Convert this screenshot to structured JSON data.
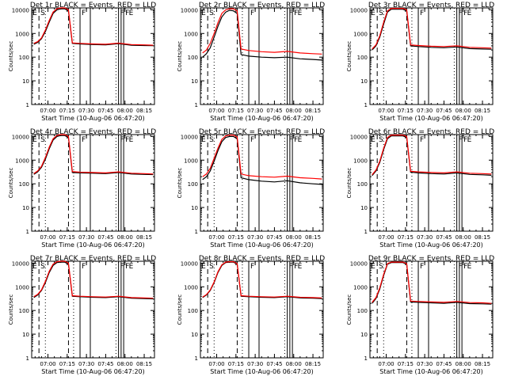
{
  "colors": {
    "events": "#000000",
    "lld": "#ff0000",
    "axes": "#000000"
  },
  "common": {
    "xlabel": "Start Time (10-Aug-06 06:47:20)",
    "ylabel": "Counts/sec",
    "x_tick_labels": [
      "07:00",
      "07:15",
      "07:30",
      "07:45",
      "08:00",
      "08:15"
    ],
    "y_tick_labels": [
      "1",
      "10",
      "100",
      "1000",
      "10000"
    ]
  },
  "chart_data": [
    {
      "type": "line",
      "title": "Det 1r BLACK = Events, RED = LLD",
      "xlabel": "Start Time (10-Aug-06 06:47:20)",
      "ylabel": "Counts/sec",
      "y_scale": "log",
      "ylim": [
        1,
        12000
      ],
      "x_start": "06:47:20",
      "x": [
        "06:49",
        "06:52",
        "06:55",
        "06:58",
        "07:01",
        "07:04",
        "07:07",
        "07:10",
        "07:13",
        "07:16",
        "07:19",
        "07:25",
        "07:35",
        "07:45",
        "07:55",
        "08:05",
        "08:15",
        "08:22"
      ],
      "series": [
        {
          "name": "BLACK = Events",
          "values": [
            350,
            420,
            600,
            1200,
            3000,
            7000,
            10000,
            11000,
            11000,
            9000,
            380,
            360,
            340,
            330,
            370,
            320,
            310,
            305
          ]
        },
        {
          "name": "RED = LLD",
          "values": [
            380,
            450,
            650,
            1400,
            3500,
            8000,
            11000,
            12000,
            12000,
            10000,
            400,
            380,
            360,
            350,
            390,
            340,
            330,
            320
          ]
        }
      ]
    },
    {
      "type": "line",
      "title": "Det 2r BLACK = Events, RED = LLD",
      "xlabel": "Start Time (10-Aug-06 06:47:20)",
      "ylabel": "Counts/sec",
      "y_scale": "log",
      "ylim": [
        1,
        12000
      ],
      "x_start": "06:47:20",
      "x": [
        "06:49",
        "06:52",
        "06:55",
        "06:58",
        "07:01",
        "07:04",
        "07:07",
        "07:10",
        "07:13",
        "07:16",
        "07:19",
        "07:25",
        "07:35",
        "07:45",
        "07:55",
        "08:05",
        "08:15",
        "08:22"
      ],
      "series": [
        {
          "name": "BLACK = Events",
          "values": [
            100,
            140,
            250,
            700,
            2000,
            5000,
            8000,
            9500,
            9000,
            7000,
            130,
            110,
            100,
            95,
            100,
            85,
            80,
            75
          ]
        },
        {
          "name": "RED = LLD",
          "values": [
            150,
            200,
            380,
            1000,
            2800,
            7000,
            10000,
            11000,
            11000,
            9000,
            220,
            190,
            170,
            160,
            175,
            150,
            140,
            135
          ]
        }
      ]
    },
    {
      "type": "line",
      "title": "Det 3r BLACK = Events, RED = LLD",
      "xlabel": "Start Time (10-Aug-06 06:47:20)",
      "ylabel": "Counts/sec",
      "y_scale": "log",
      "ylim": [
        1,
        12000
      ],
      "x_start": "06:47:20",
      "x": [
        "06:49",
        "06:52",
        "06:55",
        "06:58",
        "07:01",
        "07:04",
        "07:07",
        "07:10",
        "07:13",
        "07:16",
        "07:19",
        "07:25",
        "07:35",
        "07:45",
        "07:55",
        "08:05",
        "08:15",
        "08:22"
      ],
      "series": [
        {
          "name": "BLACK = Events",
          "values": [
            200,
            300,
            700,
            2500,
            8000,
            10500,
            10500,
            10500,
            10500,
            9000,
            300,
            280,
            260,
            250,
            270,
            230,
            220,
            215
          ]
        },
        {
          "name": "RED = LLD",
          "values": [
            220,
            330,
            800,
            3000,
            9000,
            11500,
            11500,
            11500,
            11500,
            10000,
            330,
            310,
            290,
            280,
            300,
            260,
            250,
            240
          ]
        }
      ]
    },
    {
      "type": "line",
      "title": "Det 4r BLACK = Events, RED = LLD",
      "xlabel": "Start Time (10-Aug-06 06:47:20)",
      "ylabel": "Counts/sec",
      "y_scale": "log",
      "ylim": [
        1,
        12000
      ],
      "x_start": "06:47:20",
      "x": [
        "06:49",
        "06:52",
        "06:55",
        "06:58",
        "07:01",
        "07:04",
        "07:07",
        "07:10",
        "07:13",
        "07:16",
        "07:19",
        "07:25",
        "07:35",
        "07:45",
        "07:55",
        "08:05",
        "08:15",
        "08:22"
      ],
      "series": [
        {
          "name": "BLACK = Events",
          "values": [
            250,
            320,
            500,
            1100,
            3000,
            7000,
            10000,
            11000,
            11000,
            9000,
            300,
            290,
            280,
            270,
            300,
            260,
            250,
            245
          ]
        },
        {
          "name": "RED = LLD",
          "values": [
            270,
            350,
            550,
            1300,
            3500,
            8000,
            11000,
            12000,
            12000,
            10000,
            330,
            310,
            300,
            290,
            320,
            280,
            270,
            260
          ]
        }
      ]
    },
    {
      "type": "line",
      "title": "Det 5r BLACK = Events, RED = LLD",
      "xlabel": "Start Time (10-Aug-06 06:47:20)",
      "ylabel": "Counts/sec",
      "y_scale": "log",
      "ylim": [
        1,
        12000
      ],
      "x_start": "06:47:20",
      "x": [
        "06:49",
        "06:52",
        "06:55",
        "06:58",
        "07:01",
        "07:04",
        "07:07",
        "07:10",
        "07:13",
        "07:16",
        "07:19",
        "07:25",
        "07:35",
        "07:45",
        "07:55",
        "08:05",
        "08:15",
        "08:22"
      ],
      "series": [
        {
          "name": "BLACK = Events",
          "values": [
            150,
            200,
            350,
            900,
            2500,
            6000,
            9000,
            10000,
            10000,
            8000,
            180,
            150,
            130,
            120,
            135,
            110,
            100,
            95
          ]
        },
        {
          "name": "RED = LLD",
          "values": [
            200,
            260,
            450,
            1200,
            3200,
            7500,
            10500,
            11500,
            11500,
            9500,
            260,
            220,
            200,
            190,
            210,
            180,
            170,
            160
          ]
        }
      ]
    },
    {
      "type": "line",
      "title": "Det 6r BLACK = Events, RED = LLD",
      "xlabel": "Start Time (10-Aug-06 06:47:20)",
      "ylabel": "Counts/sec",
      "y_scale": "log",
      "ylim": [
        1,
        12000
      ],
      "x_start": "06:47:20",
      "x": [
        "06:49",
        "06:52",
        "06:55",
        "06:58",
        "07:01",
        "07:04",
        "07:07",
        "07:10",
        "07:13",
        "07:16",
        "07:19",
        "07:25",
        "07:35",
        "07:45",
        "07:55",
        "08:05",
        "08:15",
        "08:22"
      ],
      "series": [
        {
          "name": "BLACK = Events",
          "values": [
            220,
            350,
            800,
            2800,
            8000,
            10500,
            10500,
            10500,
            10500,
            9000,
            310,
            290,
            270,
            260,
            290,
            250,
            240,
            230
          ]
        },
        {
          "name": "RED = LLD",
          "values": [
            240,
            380,
            900,
            3200,
            9000,
            11500,
            11500,
            11500,
            11500,
            10000,
            340,
            320,
            300,
            290,
            320,
            280,
            270,
            260
          ]
        }
      ]
    },
    {
      "type": "line",
      "title": "Det 7r BLACK = Events, RED = LLD",
      "xlabel": "Start Time (10-Aug-06 06:47:20)",
      "ylabel": "Counts/sec",
      "y_scale": "log",
      "ylim": [
        1,
        12000
      ],
      "x_start": "06:47:20",
      "x": [
        "06:49",
        "06:52",
        "06:55",
        "06:58",
        "07:01",
        "07:04",
        "07:07",
        "07:10",
        "07:13",
        "07:16",
        "07:19",
        "07:25",
        "07:35",
        "07:45",
        "07:55",
        "08:05",
        "08:15",
        "08:22"
      ],
      "series": [
        {
          "name": "BLACK = Events",
          "values": [
            350,
            450,
            700,
            1500,
            4000,
            8000,
            10500,
            11000,
            11000,
            9000,
            400,
            380,
            360,
            350,
            380,
            330,
            320,
            310
          ]
        },
        {
          "name": "RED = LLD",
          "values": [
            380,
            480,
            750,
            1700,
            4500,
            9000,
            11500,
            12000,
            12000,
            10000,
            420,
            400,
            380,
            370,
            400,
            350,
            340,
            330
          ]
        }
      ]
    },
    {
      "type": "line",
      "title": "Det 8r BLACK = Events, RED = LLD",
      "xlabel": "Start Time (10-Aug-06 06:47:20)",
      "ylabel": "Counts/sec",
      "y_scale": "log",
      "ylim": [
        1,
        12000
      ],
      "x_start": "06:47:20",
      "x": [
        "06:49",
        "06:52",
        "06:55",
        "06:58",
        "07:01",
        "07:04",
        "07:07",
        "07:10",
        "07:13",
        "07:16",
        "07:19",
        "07:25",
        "07:35",
        "07:45",
        "07:55",
        "08:05",
        "08:15",
        "08:22"
      ],
      "series": [
        {
          "name": "BLACK = Events",
          "values": [
            350,
            450,
            700,
            1500,
            4000,
            8000,
            10500,
            11000,
            11000,
            9000,
            400,
            380,
            360,
            350,
            380,
            340,
            330,
            320
          ]
        },
        {
          "name": "RED = LLD",
          "values": [
            370,
            470,
            740,
            1600,
            4300,
            8500,
            11000,
            11500,
            11500,
            9500,
            420,
            400,
            380,
            370,
            400,
            360,
            350,
            340
          ]
        }
      ]
    },
    {
      "type": "line",
      "title": "Det 9r BLACK = Events, RED = LLD",
      "xlabel": "Start Time (10-Aug-06 06:47:20)",
      "ylabel": "Counts/sec",
      "y_scale": "log",
      "ylim": [
        1,
        12000
      ],
      "x_start": "06:47:20",
      "x": [
        "06:49",
        "06:52",
        "06:55",
        "06:58",
        "07:01",
        "07:04",
        "07:07",
        "07:10",
        "07:13",
        "07:16",
        "07:19",
        "07:25",
        "07:35",
        "07:45",
        "07:55",
        "08:05",
        "08:15",
        "08:22"
      ],
      "series": [
        {
          "name": "BLACK = Events",
          "values": [
            200,
            320,
            800,
            3000,
            9000,
            10500,
            10500,
            10500,
            10500,
            9000,
            230,
            220,
            210,
            200,
            220,
            195,
            190,
            185
          ]
        },
        {
          "name": "RED = LLD",
          "values": [
            220,
            350,
            900,
            3400,
            9500,
            11000,
            11000,
            11000,
            11000,
            9500,
            250,
            240,
            230,
            220,
            240,
            215,
            210,
            200
          ]
        }
      ]
    }
  ],
  "markers": {
    "dashed": [
      {
        "time": "06:53",
        "label": "S"
      },
      {
        "time": "07:16",
        "label": ""
      }
    ],
    "dotted": [
      {
        "time": "06:58"
      },
      {
        "time": "07:20"
      },
      {
        "time": "07:53"
      }
    ],
    "solid": [
      {
        "time": "07:25",
        "label": "F"
      },
      {
        "time": "07:33",
        "label": ""
      },
      {
        "time": "07:55",
        "label": "F"
      },
      {
        "time": "07:57",
        "label": ""
      },
      {
        "time": "07:59",
        "label": "F"
      }
    ],
    "start_label": {
      "time": "06:48",
      "label": "E"
    },
    "end_label": {
      "time": "08:03",
      "label": "E"
    }
  }
}
